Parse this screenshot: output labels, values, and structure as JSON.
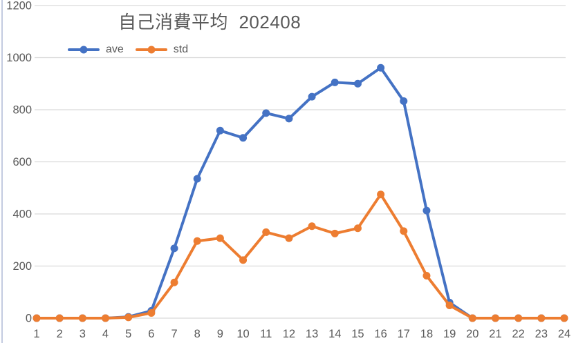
{
  "title": "自己消費平均  202408",
  "colors": {
    "ave_blue": "#4472C4",
    "std_orange": "#ED7D31",
    "text_gray": "#595959",
    "gridline": "#D9D9D9",
    "left_edge": "#C3CBE0",
    "background": "#FFFFFF"
  },
  "legend": [
    {
      "label": "ave",
      "color": "#4472C4"
    },
    {
      "label": "std",
      "color": "#ED7D31"
    }
  ],
  "chart_data": {
    "type": "line",
    "title": "自己消費平均  202408",
    "x": [
      1,
      2,
      3,
      4,
      5,
      6,
      7,
      8,
      9,
      10,
      11,
      12,
      13,
      14,
      15,
      16,
      17,
      18,
      19,
      20,
      21,
      22,
      23,
      24
    ],
    "series": [
      {
        "name": "ave",
        "color": "#4472C4",
        "values": [
          0,
          0,
          0,
          0,
          5,
          28,
          268,
          535,
          720,
          692,
          787,
          766,
          850,
          905,
          900,
          961,
          833,
          413,
          60,
          0,
          0,
          0,
          0,
          0
        ]
      },
      {
        "name": "std",
        "color": "#ED7D31",
        "values": [
          0,
          0,
          0,
          0,
          3,
          20,
          137,
          296,
          307,
          223,
          330,
          307,
          353,
          325,
          345,
          475,
          334,
          163,
          49,
          0,
          0,
          0,
          0,
          0
        ]
      }
    ],
    "xlabel": "",
    "ylabel": "",
    "ylim": [
      0,
      1200
    ],
    "yticks": [
      0,
      200,
      400,
      600,
      800,
      1000,
      1200
    ],
    "grid": true,
    "legend_position": "top-left",
    "marker": "circle",
    "line_width": 4
  }
}
